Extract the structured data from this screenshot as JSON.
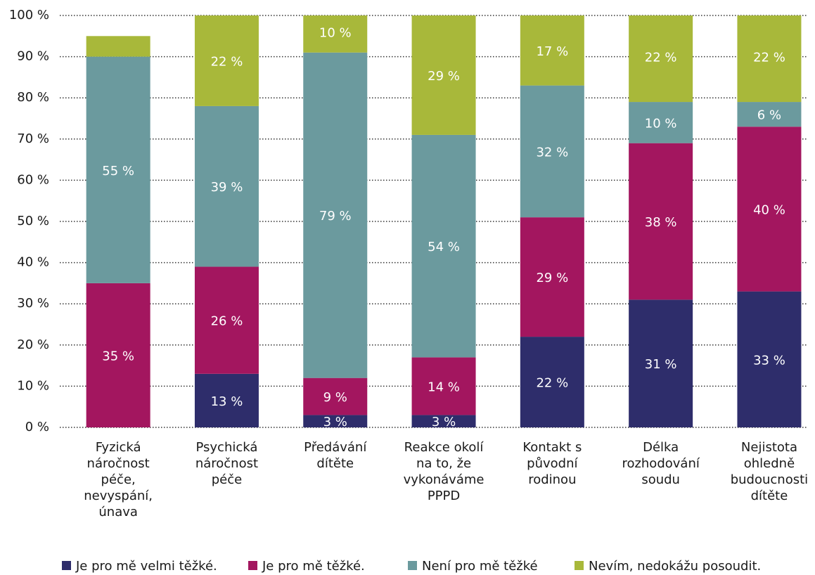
{
  "chart_data": {
    "type": "stacked_bar",
    "categories": [
      "Fyzická\nnáročnost\npéče,\nnevyspání,\núnava",
      "Psychická\nnáročnost\npéče",
      "Předávání\ndítěte",
      "Reakce okolí\nna to, že\nvykonáváme\nPPPD",
      "Kontakt s\npůvodní\nrodinou",
      "Délka\nrozhodování\nsoudu",
      "Nejistota\nohledně\nbudoucnosti\ndítěte"
    ],
    "series": [
      {
        "name": "Je pro mě velmi těžké.",
        "color": "#2e2d6b",
        "values": [
          0,
          13,
          3,
          3,
          22,
          31,
          33
        ],
        "value_labels": [
          null,
          "13 %",
          "3 %",
          "3 %",
          "22 %",
          "31 %",
          "33 %"
        ]
      },
      {
        "name": "Je pro mě těžké.",
        "color": "#a3165f",
        "values": [
          35,
          26,
          9,
          14,
          29,
          38,
          40
        ],
        "value_labels": [
          "35 %",
          "26 %",
          "9 %",
          "14 %",
          "29 %",
          "38 %",
          "40 %"
        ]
      },
      {
        "name": "Není pro mě těžké",
        "color": "#6b9a9e",
        "values": [
          55,
          39,
          79,
          54,
          32,
          10,
          6
        ],
        "value_labels": [
          "55 %",
          "39 %",
          "79 %",
          "54 %",
          "32 %",
          "10 %",
          "6 %"
        ]
      },
      {
        "name": "Nevím, nedokážu posoudit.",
        "color": "#a8b83a",
        "values": [
          5,
          22,
          10,
          29,
          17,
          22,
          22
        ],
        "value_labels": [
          null,
          "22 %",
          "10 %",
          "29 %",
          "17 %",
          "22 %",
          "22 %"
        ]
      }
    ],
    "ylim": [
      0,
      100
    ],
    "yticks": [
      {
        "value": 0,
        "label": "0 %"
      },
      {
        "value": 10,
        "label": "10 %"
      },
      {
        "value": 20,
        "label": "20 %"
      },
      {
        "value": 30,
        "label": "30 %"
      },
      {
        "value": 40,
        "label": "40 %"
      },
      {
        "value": 50,
        "label": "50 %"
      },
      {
        "value": 60,
        "label": "60 %"
      },
      {
        "value": 70,
        "label": "70 %"
      },
      {
        "value": 80,
        "label": "80 %"
      },
      {
        "value": 90,
        "label": "90 %"
      },
      {
        "value": 100,
        "label": "100 %"
      }
    ],
    "grid": true,
    "legend": "bottom"
  }
}
